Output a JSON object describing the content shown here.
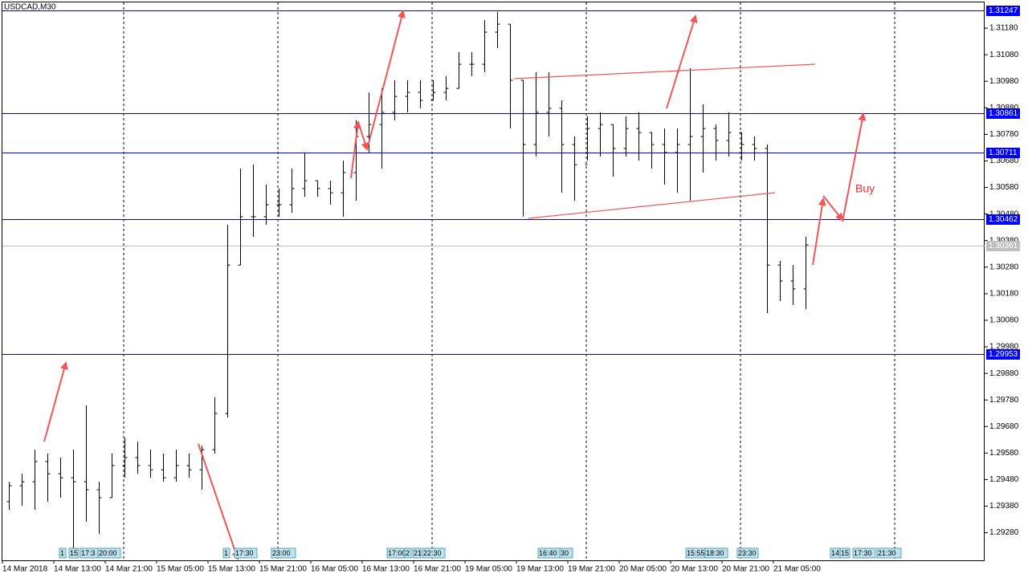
{
  "chart_data": {
    "type": "ohlc",
    "title": "USDCAD,M30",
    "color": "#000000",
    "x": [
      2,
      6,
      10,
      14,
      18,
      22,
      26,
      30,
      34,
      38,
      42,
      46,
      50,
      54,
      58,
      62,
      66,
      70,
      74,
      78,
      82,
      86,
      90,
      94,
      98,
      102,
      106,
      110,
      114,
      118,
      122,
      126,
      130,
      134,
      138,
      142,
      146,
      150,
      154,
      158,
      162,
      166,
      170,
      174,
      178,
      182,
      186,
      190,
      194,
      198,
      202,
      206,
      210,
      214,
      218,
      222,
      226,
      230,
      234,
      238,
      242,
      246,
      250
    ],
    "open": [
      1.29397,
      1.29457,
      1.29472,
      1.29548,
      1.29502,
      1.29487,
      1.29472,
      1.29442,
      1.29412,
      1.29533,
      1.29563,
      1.29533,
      1.29517,
      1.29487,
      1.29533,
      1.29517,
      1.29593,
      1.29729,
      1.30288,
      1.3047,
      1.3047,
      1.30515,
      1.30515,
      1.30576,
      1.30606,
      1.30576,
      1.3056,
      1.30636,
      1.30772,
      1.30817,
      1.30863,
      1.30923,
      1.30938,
      1.30908,
      1.30938,
      1.30953,
      1.31044,
      1.31044,
      1.31165,
      1.31195,
      1.30984,
      1.30742,
      1.30863,
      1.30878,
      1.30742,
      1.30666,
      1.30802,
      1.30817,
      1.30727,
      1.30802,
      1.30787,
      1.30742,
      1.30712,
      1.30742,
      1.30772,
      1.30802,
      1.30757,
      1.30787,
      1.30742,
      1.30727,
      1.30288,
      1.30228,
      1.30198
    ],
    "high": [
      1.29472,
      1.29502,
      1.29593,
      1.29578,
      1.29563,
      1.29593,
      1.29759,
      1.29472,
      1.29578,
      1.29638,
      1.29623,
      1.29593,
      1.29578,
      1.29593,
      1.29578,
      1.29608,
      1.2979,
      1.3044,
      1.30651,
      1.30666,
      1.30591,
      1.30576,
      1.30651,
      1.30712,
      1.30606,
      1.30606,
      1.30681,
      1.30833,
      1.30938,
      1.30953,
      1.30984,
      1.30984,
      1.30984,
      1.30984,
      1.30999,
      1.3109,
      1.3109,
      1.3121,
      1.31241,
      1.31195,
      1.30984,
      1.31014,
      1.31014,
      1.30908,
      1.30772,
      1.30848,
      1.30863,
      1.30817,
      1.30848,
      1.30863,
      1.30787,
      1.30802,
      1.30802,
      1.31029,
      1.30893,
      1.30817,
      1.30863,
      1.30787,
      1.30772,
      1.30742,
      1.30304,
      1.30288,
      1.30394
    ],
    "low": [
      1.29366,
      1.29381,
      1.29366,
      1.29397,
      1.29412,
      1.292,
      1.29321,
      1.29276,
      1.29412,
      1.29487,
      1.29502,
      1.29487,
      1.29472,
      1.29472,
      1.29487,
      1.29442,
      1.29578,
      1.29714,
      1.30288,
      1.30394,
      1.3044,
      1.3047,
      1.30485,
      1.30545,
      1.30545,
      1.30515,
      1.3047,
      1.3053,
      1.30712,
      1.30651,
      1.30833,
      1.30863,
      1.30878,
      1.30908,
      1.30908,
      1.30953,
      1.30999,
      1.31014,
      1.31105,
      1.30802,
      1.3047,
      1.30697,
      1.30772,
      1.3056,
      1.3053,
      1.30681,
      1.30697,
      1.30621,
      1.30697,
      1.30681,
      1.30651,
      1.30591,
      1.3056,
      1.3053,
      1.30636,
      1.30681,
      1.30697,
      1.30681,
      1.30681,
      1.30107,
      1.30152,
      1.30137,
      1.30122
    ],
    "close": [
      1.29457,
      1.29472,
      1.29548,
      1.29502,
      1.29487,
      1.29472,
      1.29442,
      1.29412,
      1.29533,
      1.29563,
      1.29533,
      1.29517,
      1.29487,
      1.29533,
      1.29517,
      1.29593,
      1.29729,
      1.30288,
      1.3047,
      1.3047,
      1.30515,
      1.30515,
      1.30576,
      1.30606,
      1.30576,
      1.3056,
      1.30636,
      1.30772,
      1.30817,
      1.30863,
      1.30923,
      1.30938,
      1.30908,
      1.30938,
      1.30953,
      1.31044,
      1.31044,
      1.31165,
      1.31195,
      1.30984,
      1.30742,
      1.30863,
      1.30878,
      1.30742,
      1.30666,
      1.30802,
      1.30817,
      1.30727,
      1.30802,
      1.30787,
      1.30742,
      1.30712,
      1.30742,
      1.30772,
      1.30802,
      1.30757,
      1.30787,
      1.30742,
      1.30727,
      1.30288,
      1.30228,
      1.30198,
      1.30364
    ],
    "xlim": [
      0,
      305.75
    ],
    "xticks": [
      {
        "value": 0,
        "label": "14 Mar 2018"
      },
      {
        "value": 16,
        "label": "14 Mar 13:00"
      },
      {
        "value": 32,
        "label": "14 Mar 21:00"
      },
      {
        "value": 48,
        "label": "15 Mar 05:00"
      },
      {
        "value": 64,
        "label": "15 Mar 13:00"
      },
      {
        "value": 80,
        "label": "15 Mar 21:00"
      },
      {
        "value": 96,
        "label": "16 Mar 05:00"
      },
      {
        "value": 112,
        "label": "16 Mar 13:00"
      },
      {
        "value": 128,
        "label": "16 Mar 21:00"
      },
      {
        "value": 144,
        "label": "19 Mar 05:00"
      },
      {
        "value": 160,
        "label": "19 Mar 13:00"
      },
      {
        "value": 176,
        "label": "19 Mar 21:00"
      },
      {
        "value": 192,
        "label": "20 Mar 05:00"
      },
      {
        "value": 208,
        "label": "20 Mar 13:00"
      },
      {
        "value": 224,
        "label": "20 Mar 21:00"
      },
      {
        "value": 240,
        "label": "21 Mar 05:00"
      }
    ],
    "ylim": [
      1.29176,
      1.31286
    ],
    "yticks": [
      {
        "value": 1.3118,
        "label": "1.31180"
      },
      {
        "value": 1.3108,
        "label": "1.31080"
      },
      {
        "value": 1.3098,
        "label": "1.30980"
      },
      {
        "value": 1.3088,
        "label": "1.30880"
      },
      {
        "value": 1.3078,
        "label": "1.30780"
      },
      {
        "value": 1.3068,
        "label": "1.30680"
      },
      {
        "value": 1.3058,
        "label": "1.30580"
      },
      {
        "value": 1.3048,
        "label": "1.30480"
      },
      {
        "value": 1.3038,
        "label": "1.30380"
      },
      {
        "value": 1.3028,
        "label": "1.30280"
      },
      {
        "value": 1.3018,
        "label": "1.30180"
      },
      {
        "value": 1.3008,
        "label": "1.30080"
      },
      {
        "value": 1.2998,
        "label": "1.29980"
      },
      {
        "value": 1.2988,
        "label": "1.29880"
      },
      {
        "value": 1.2978,
        "label": "1.29780"
      },
      {
        "value": 1.2968,
        "label": "1.29680"
      },
      {
        "value": 1.2958,
        "label": "1.29580"
      },
      {
        "value": 1.2948,
        "label": "1.29480"
      },
      {
        "value": 1.2938,
        "label": "1.29380"
      },
      {
        "value": 1.2928,
        "label": "1.29280"
      }
    ],
    "grid": false,
    "levels": [
      {
        "price": 1.31247,
        "color": "#0000ff"
      },
      {
        "price": 1.30861,
        "color": "#0000ff"
      },
      {
        "price": 1.30711,
        "color": "#0000ff"
      },
      {
        "price": 1.30462,
        "color": "#0000ff"
      },
      {
        "price": 1.29953,
        "color": "#0000ff"
      },
      {
        "price": 1.30361,
        "color": "#c0c0c0"
      }
    ],
    "annotation": "Buy",
    "event_labels": [
      "1",
      "15",
      "17:3",
      "20:00",
      "1",
      "17:30",
      "23:00",
      "17:00",
      "2",
      "21",
      "22:30",
      "16:40",
      "30",
      "15:55",
      "18:30",
      "23:30",
      "14",
      "15",
      "17:30",
      "21:30"
    ]
  }
}
